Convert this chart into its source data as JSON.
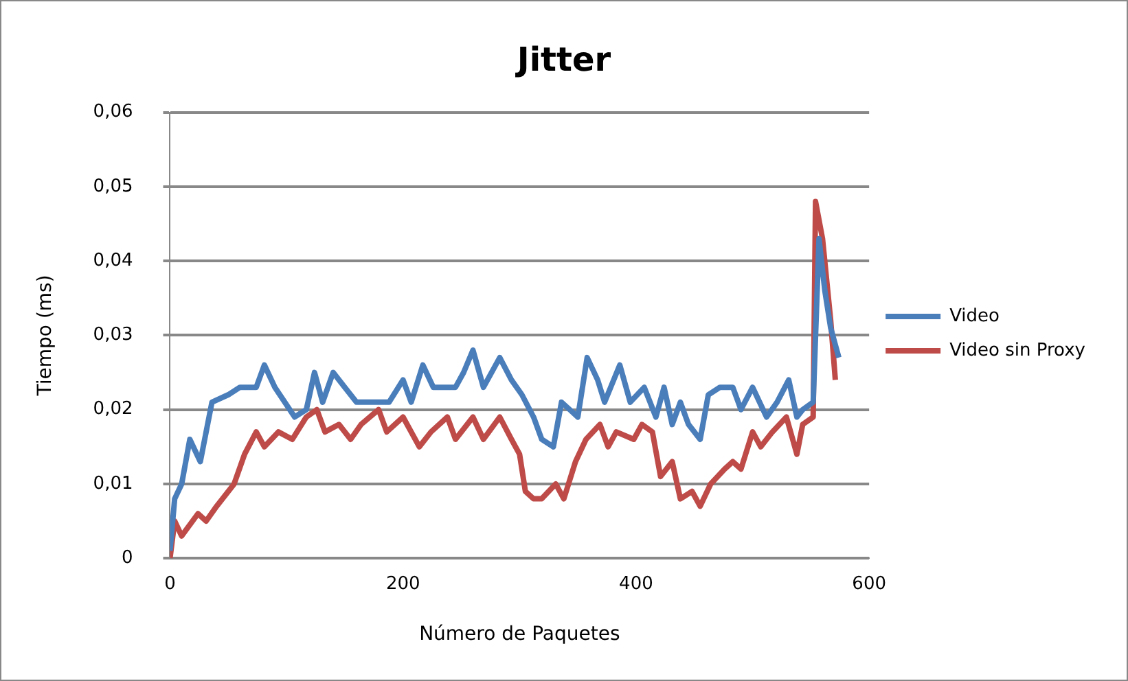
{
  "chart_data": {
    "type": "line",
    "title": "Jitter",
    "xlabel": "Número de Paquetes",
    "ylabel": "Tiempo (ms)",
    "xlim": [
      0,
      600
    ],
    "xticks": [
      0,
      200,
      400,
      600
    ],
    "ylim": [
      0,
      0.06
    ],
    "yticks": [
      {
        "value": 0,
        "label": "0"
      },
      {
        "value": 0.01,
        "label": "0,01"
      },
      {
        "value": 0.02,
        "label": "0,02"
      },
      {
        "value": 0.03,
        "label": "0,03"
      },
      {
        "value": 0.04,
        "label": "0,04"
      },
      {
        "value": 0.05,
        "label": "0,05"
      },
      {
        "value": 0.06,
        "label": "0,06"
      }
    ],
    "grid": "y",
    "legend": "right",
    "marker": "none",
    "line_style": "solid",
    "series": [
      {
        "name": "Video",
        "color": "#4a7ebb",
        "x": [
          0,
          4,
          10,
          17,
          26,
          36,
          50,
          60,
          74,
          81,
          90,
          107,
          117,
          124,
          131,
          140,
          150,
          160,
          179,
          188,
          200,
          207,
          217,
          226,
          238,
          245,
          252,
          260,
          269,
          283,
          293,
          302,
          312,
          319,
          329,
          336,
          343,
          350,
          358,
          367,
          373,
          386,
          395,
          407,
          417,
          424,
          431,
          438,
          445,
          455,
          462,
          472,
          483,
          490,
          500,
          512,
          521,
          531,
          538,
          543,
          552,
          557,
          562,
          567,
          574
        ],
        "values": [
          0.001,
          0.008,
          0.01,
          0.016,
          0.013,
          0.021,
          0.022,
          0.023,
          0.023,
          0.026,
          0.023,
          0.019,
          0.02,
          0.025,
          0.021,
          0.025,
          0.023,
          0.021,
          0.021,
          0.021,
          0.024,
          0.021,
          0.026,
          0.023,
          0.023,
          0.023,
          0.025,
          0.028,
          0.023,
          0.027,
          0.024,
          0.022,
          0.019,
          0.016,
          0.015,
          0.021,
          0.02,
          0.019,
          0.027,
          0.024,
          0.021,
          0.026,
          0.021,
          0.023,
          0.019,
          0.023,
          0.018,
          0.021,
          0.018,
          0.016,
          0.022,
          0.023,
          0.023,
          0.02,
          0.023,
          0.019,
          0.021,
          0.024,
          0.019,
          0.02,
          0.021,
          0.043,
          0.036,
          0.031,
          0.027
        ]
      },
      {
        "name": "Video sin Proxy",
        "color": "#be4b48",
        "x": [
          0,
          4,
          10,
          24,
          31,
          40,
          55,
          64,
          74,
          81,
          93,
          105,
          117,
          126,
          133,
          145,
          155,
          164,
          179,
          186,
          200,
          214,
          224,
          238,
          245,
          260,
          269,
          283,
          293,
          300,
          305,
          312,
          319,
          331,
          338,
          348,
          357,
          369,
          376,
          383,
          398,
          405,
          414,
          421,
          431,
          438,
          448,
          455,
          464,
          476,
          483,
          490,
          500,
          507,
          517,
          529,
          538,
          543,
          552,
          554,
          560,
          567,
          571
        ],
        "values": [
          0,
          0.005,
          0.003,
          0.006,
          0.005,
          0.007,
          0.01,
          0.014,
          0.017,
          0.015,
          0.017,
          0.016,
          0.019,
          0.02,
          0.017,
          0.018,
          0.016,
          0.018,
          0.02,
          0.017,
          0.019,
          0.015,
          0.017,
          0.019,
          0.016,
          0.019,
          0.016,
          0.019,
          0.016,
          0.014,
          0.009,
          0.008,
          0.008,
          0.01,
          0.008,
          0.013,
          0.016,
          0.018,
          0.015,
          0.017,
          0.016,
          0.018,
          0.017,
          0.011,
          0.013,
          0.008,
          0.009,
          0.007,
          0.01,
          0.012,
          0.013,
          0.012,
          0.017,
          0.015,
          0.017,
          0.019,
          0.014,
          0.018,
          0.019,
          0.048,
          0.043,
          0.032,
          0.024
        ]
      }
    ]
  }
}
